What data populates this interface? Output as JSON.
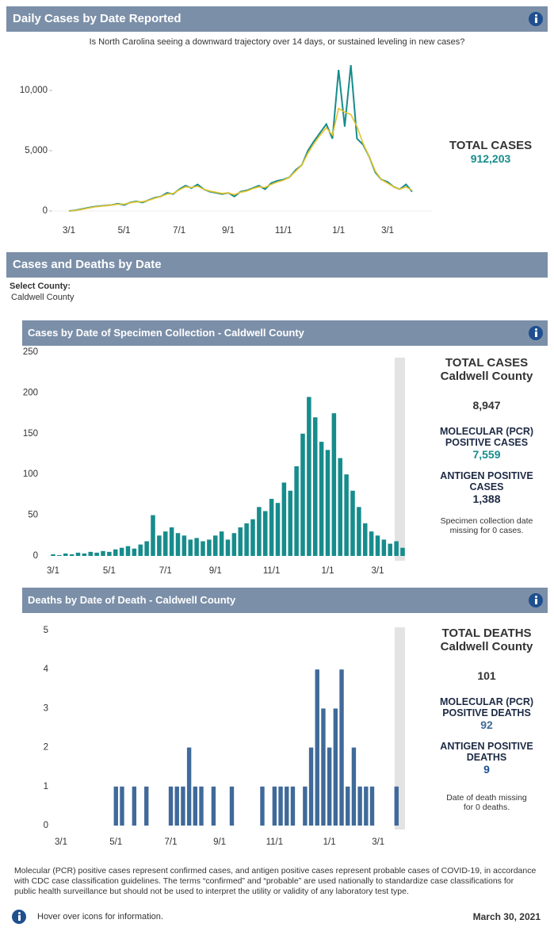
{
  "chart_data": [
    {
      "type": "line",
      "title": "Daily Cases by Date Reported",
      "subtitle": "Is North Carolina seeing a downward trajectory over 14 days, or sustained leveling in new cases?",
      "categories": [
        "3/1",
        null,
        null,
        null,
        null,
        null,
        null,
        null,
        null,
        "5/1",
        null,
        null,
        null,
        null,
        null,
        null,
        null,
        null,
        "7/1",
        null,
        null,
        null,
        null,
        null,
        null,
        null,
        "9/1",
        null,
        null,
        null,
        null,
        null,
        null,
        null,
        null,
        "11/1",
        null,
        null,
        null,
        null,
        null,
        null,
        null,
        null,
        "1/1",
        null,
        null,
        null,
        null,
        null,
        null,
        null,
        "3/1",
        null,
        null,
        null,
        null
      ],
      "series": [
        {
          "name": "Daily cases",
          "color": "#178c8c",
          "values": [
            0,
            50,
            150,
            250,
            350,
            400,
            450,
            500,
            600,
            500,
            700,
            800,
            700,
            900,
            1100,
            1200,
            1500,
            1400,
            1800,
            2100,
            1900,
            2200,
            1800,
            1600,
            1500,
            1400,
            1500,
            1200,
            1600,
            1700,
            1900,
            2100,
            1800,
            2300,
            2500,
            2600,
            2800,
            3400,
            3800,
            5000,
            5800,
            6500,
            7200,
            6000,
            11700,
            7000,
            12100,
            6000,
            5500,
            4500,
            3200,
            2600,
            2400,
            2000,
            1800,
            2200,
            1600
          ]
        },
        {
          "name": "7-day average",
          "color": "#e6c229",
          "values": [
            0,
            40,
            120,
            220,
            320,
            380,
            440,
            500,
            560,
            560,
            680,
            760,
            760,
            880,
            1050,
            1200,
            1400,
            1450,
            1750,
            2000,
            1950,
            2050,
            1800,
            1650,
            1550,
            1450,
            1500,
            1350,
            1550,
            1650,
            1850,
            2000,
            1950,
            2200,
            2400,
            2550,
            2800,
            3300,
            3800,
            4800,
            5600,
            6300,
            6900,
            6300,
            8500,
            8200,
            8000,
            7000,
            5600,
            4500,
            3300,
            2600,
            2300,
            2000,
            1800,
            2000,
            1700
          ]
        }
      ],
      "ylim": [
        0,
        12500
      ],
      "yticks": [
        0,
        {
          "value": 5000,
          "label": "5,000"
        },
        {
          "value": 10000,
          "label": "10,000"
        }
      ]
    },
    {
      "type": "bar",
      "title": "Cases by Date of Specimen Collection - Caldwell County",
      "categories": [
        "3/1",
        null,
        null,
        null,
        null,
        null,
        null,
        null,
        null,
        "5/1",
        null,
        null,
        null,
        null,
        null,
        null,
        null,
        null,
        "7/1",
        null,
        null,
        null,
        null,
        null,
        null,
        null,
        "9/1",
        null,
        null,
        null,
        null,
        null,
        null,
        null,
        null,
        "11/1",
        null,
        null,
        null,
        null,
        null,
        null,
        null,
        null,
        "1/1",
        null,
        null,
        null,
        null,
        null,
        null,
        null,
        "3/1",
        null,
        null,
        null,
        null
      ],
      "values": [
        2,
        1,
        3,
        2,
        4,
        3,
        5,
        4,
        6,
        5,
        8,
        10,
        12,
        9,
        14,
        18,
        50,
        25,
        30,
        35,
        28,
        25,
        20,
        22,
        18,
        20,
        25,
        30,
        20,
        28,
        35,
        40,
        45,
        60,
        55,
        70,
        65,
        90,
        80,
        110,
        150,
        195,
        170,
        140,
        130,
        175,
        120,
        100,
        80,
        60,
        40,
        30,
        25,
        20,
        15,
        18,
        10
      ],
      "color": "#178c8c",
      "ylim": [
        0,
        250
      ],
      "yticks": [
        0,
        50,
        100,
        150,
        200,
        250
      ]
    },
    {
      "type": "bar",
      "title": "Deaths by Date of Death - Caldwell County",
      "categories": [
        "3/1",
        null,
        null,
        null,
        null,
        null,
        null,
        null,
        null,
        "5/1",
        null,
        null,
        null,
        null,
        null,
        null,
        null,
        null,
        "7/1",
        null,
        null,
        null,
        null,
        null,
        null,
        null,
        "9/1",
        null,
        null,
        null,
        null,
        null,
        null,
        null,
        null,
        "11/1",
        null,
        null,
        null,
        null,
        null,
        null,
        null,
        null,
        "1/1",
        null,
        null,
        null,
        null,
        null,
        null,
        null,
        "3/1",
        null,
        null,
        null,
        null
      ],
      "values": [
        0,
        0,
        0,
        0,
        0,
        0,
        0,
        0,
        0,
        1,
        1,
        0,
        1,
        0,
        1,
        0,
        0,
        0,
        1,
        1,
        1,
        2,
        1,
        1,
        0,
        1,
        0,
        0,
        1,
        0,
        0,
        0,
        0,
        1,
        0,
        1,
        1,
        1,
        1,
        0,
        1,
        2,
        4,
        3,
        2,
        3,
        4,
        1,
        2,
        1,
        1,
        1,
        0,
        0,
        0,
        1,
        0
      ],
      "color": "#3f6a99",
      "ylim": [
        0,
        5
      ],
      "yticks": [
        0,
        1,
        2,
        3,
        4,
        5
      ]
    }
  ],
  "summary": {
    "label": "TOTAL CASES",
    "value": "912,203"
  },
  "section": {
    "title": "Cases and Deaths by Date",
    "select_label": "Select County:",
    "county": "Caldwell County"
  },
  "cases_panel": {
    "total_label": "TOTAL CASES",
    "county": "Caldwell County",
    "total": "8,947",
    "pcr_label": "MOLECULAR (PCR) POSITIVE CASES",
    "pcr": "7,559",
    "antigen_label": "ANTIGEN POSITIVE CASES",
    "antigen": "1,388",
    "note": "Specimen collection date missing for 0 cases."
  },
  "deaths_panel": {
    "total_label": "TOTAL DEATHS",
    "county": "Caldwell County",
    "total": "101",
    "pcr_label": "MOLECULAR (PCR) POSITIVE DEATHS",
    "pcr": "92",
    "antigen_label": "ANTIGEN POSITIVE DEATHS",
    "antigen": "9",
    "note": "Date of death missing for 0 deaths."
  },
  "footer": {
    "note": "Molecular (PCR) positive cases represent confirmed cases, and antigen positive cases represent probable cases of COVID-19, in accordance with CDC case classification guidelines. The terms “confirmed” and “probable” are used nationally to standardize case classifications for public health surveillance but should not be used to interpret the utility or validity of any laboratory test type.",
    "hover": "Hover over icons for information.",
    "date": "March 30, 2021"
  }
}
